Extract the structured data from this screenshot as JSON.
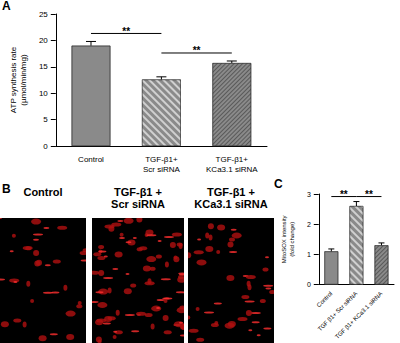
{
  "chart_data": [
    {
      "panel": "A",
      "type": "bar",
      "y_label": "ATP synthesis rate\n(µmol/min/mg)",
      "categories": [
        "Control",
        "TGF-β1+\nScr siRNA",
        "TGF-β1+\nKCa3.1 siRNA"
      ],
      "values": [
        19.0,
        12.6,
        15.7
      ],
      "errors": [
        0.8,
        0.5,
        0.4
      ],
      "color": "#8a8a8a",
      "ylim": [
        0,
        25
      ],
      "yticks": [
        0,
        5,
        10,
        15,
        20,
        25
      ],
      "grid": false,
      "annotations": [
        {
          "text": "**",
          "between": [
            0,
            1
          ]
        },
        {
          "text": "**",
          "between": [
            1,
            2
          ]
        }
      ]
    },
    {
      "panel": "C",
      "type": "bar",
      "y_label": "MitoSOX intensity\n(fold change)",
      "categories": [
        "Control",
        "TGF β1+ Scr siRNA",
        "TGF β1+ KCa3.1 siRNA"
      ],
      "values": [
        1.1,
        2.6,
        1.3
      ],
      "errors": [
        0.08,
        0.15,
        0.08
      ],
      "color": "#8a8a8a",
      "ylim": [
        0,
        3
      ],
      "yticks": [
        0,
        1,
        2,
        3
      ],
      "grid": false,
      "annotations": [
        {
          "text": "**",
          "between": [
            0,
            1
          ]
        },
        {
          "text": "**",
          "between": [
            1,
            2
          ]
        }
      ]
    }
  ],
  "images": {
    "panel": "B",
    "labels": [
      "Control",
      "TGF-β1 +\nScr siRNA",
      "TGF-β1 +\nKCa3.1 siRNA"
    ]
  }
}
